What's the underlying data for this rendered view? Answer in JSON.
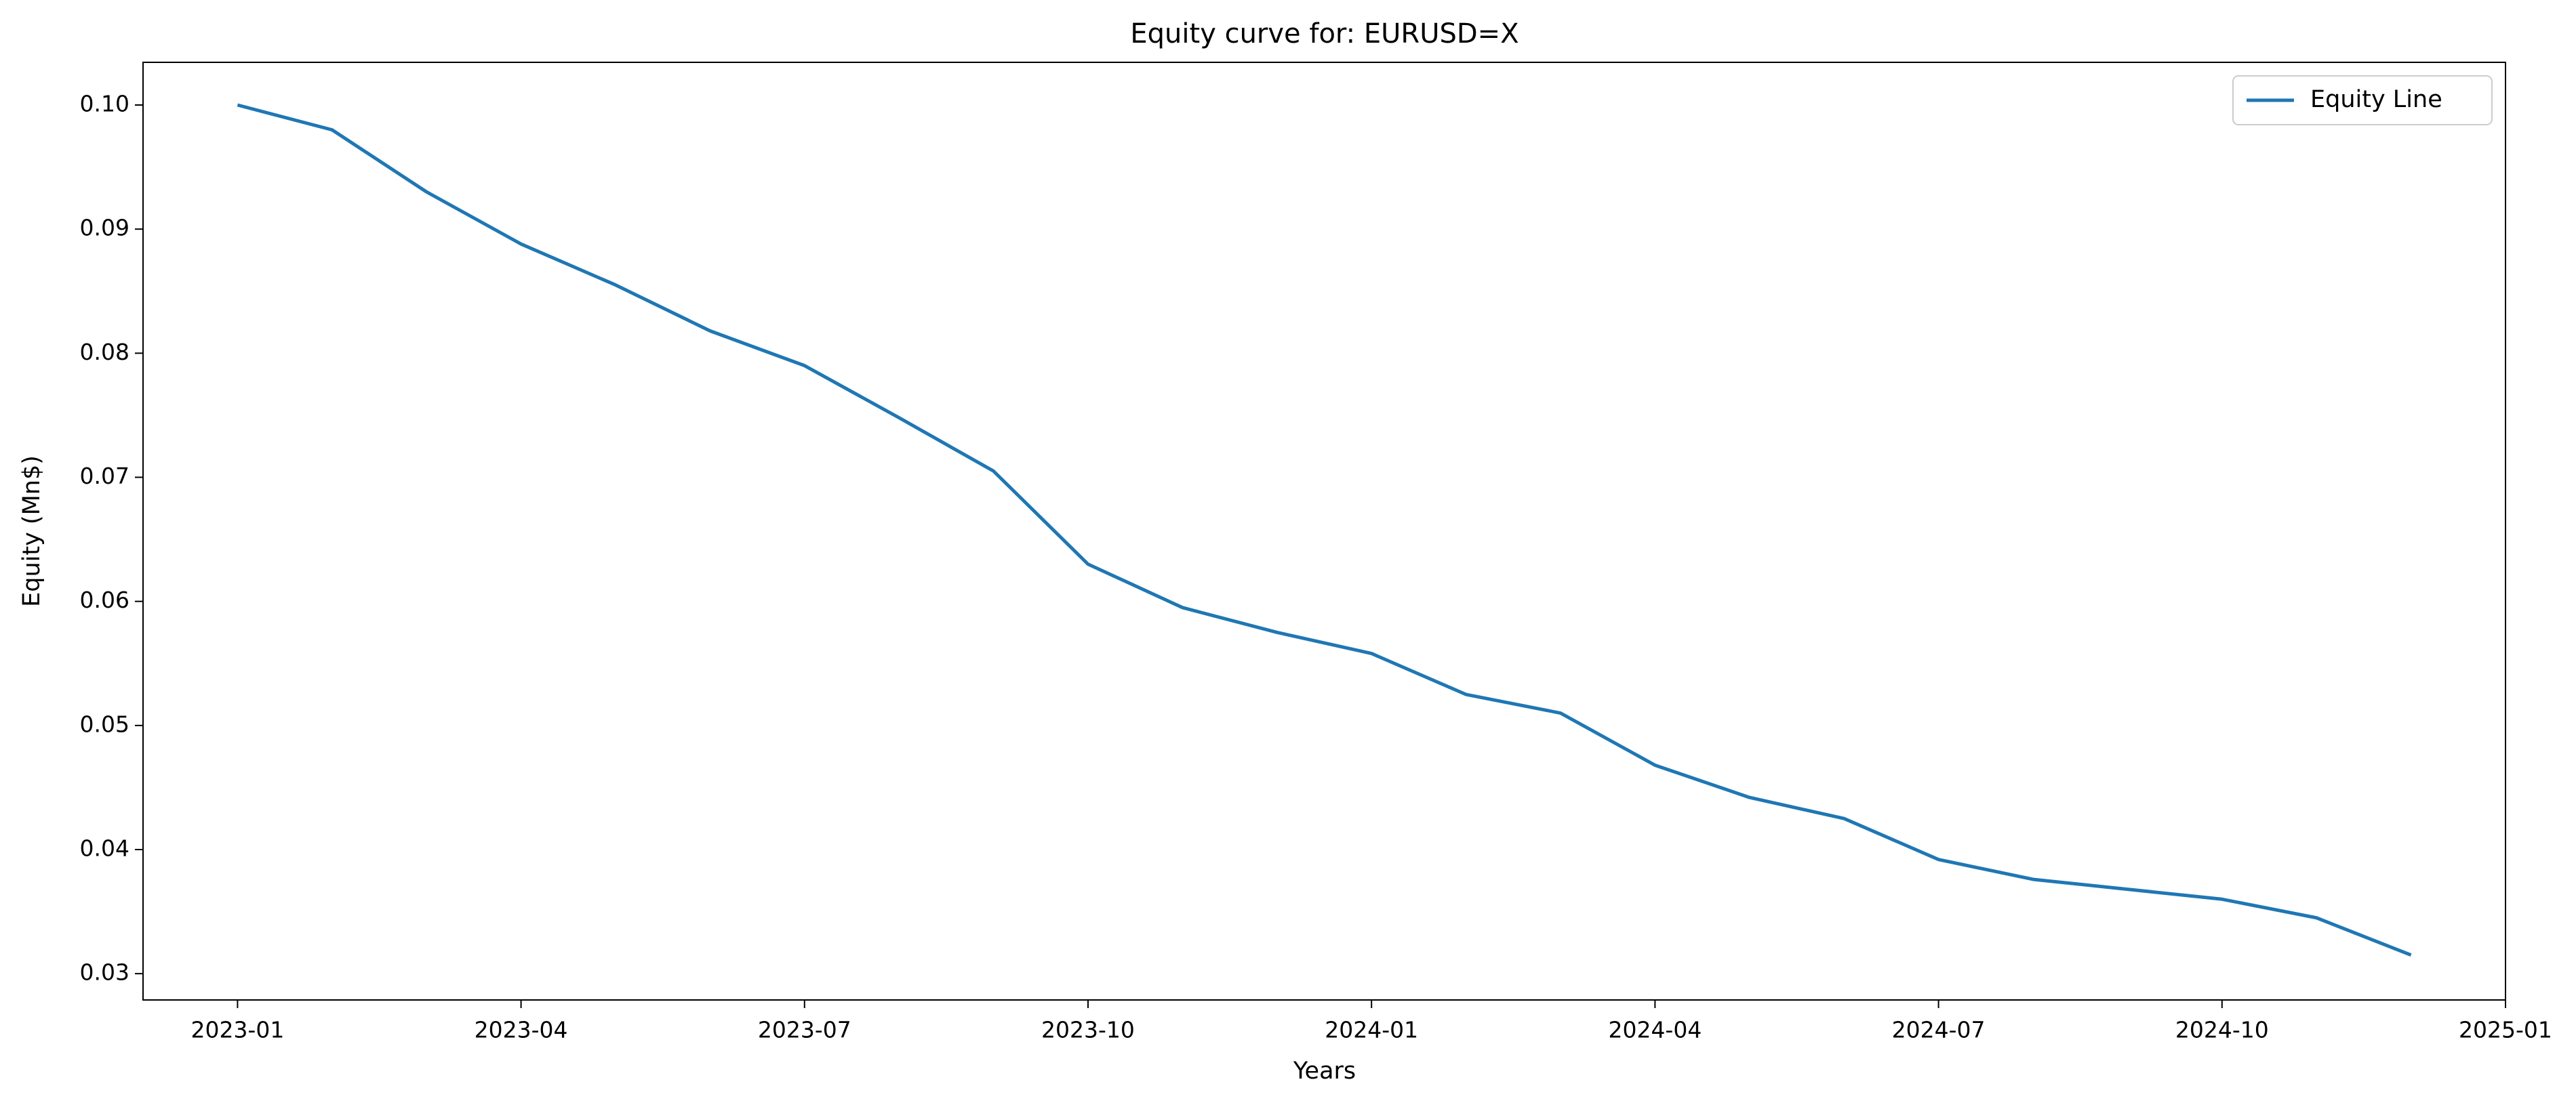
{
  "chart_data": {
    "type": "line",
    "title": "Equity curve for: EURUSD=X",
    "x_label": "Years",
    "y_label": "Equity (Mn$)",
    "x": [
      "2023-01",
      "2023-02",
      "2023-03",
      "2023-04",
      "2023-05",
      "2023-06",
      "2023-07",
      "2023-08",
      "2023-09",
      "2023-10",
      "2023-11",
      "2023-12",
      "2024-01",
      "2024-02",
      "2024-03",
      "2024-04",
      "2024-05",
      "2024-06",
      "2024-07",
      "2024-08",
      "2024-09",
      "2024-10",
      "2024-11",
      "2024-12"
    ],
    "series": [
      {
        "name": "Equity Line",
        "color": "#1f77b4",
        "values": [
          0.1,
          0.098,
          0.093,
          0.0888,
          0.0855,
          0.0818,
          0.079,
          0.0748,
          0.0705,
          0.063,
          0.0595,
          0.0575,
          0.0558,
          0.0525,
          0.051,
          0.0468,
          0.0442,
          0.0425,
          0.0392,
          0.0376,
          0.0368,
          0.036,
          0.0345,
          0.0315
        ]
      }
    ],
    "xlim": [
      "2022-12",
      "2025-01"
    ],
    "xticks": [
      "2023-01",
      "2023-04",
      "2023-07",
      "2023-10",
      "2024-01",
      "2024-04",
      "2024-07",
      "2024-10",
      "2025-01"
    ],
    "ylim": [
      0.02788,
      0.10344
    ],
    "yticks": [
      0.03,
      0.04,
      0.05,
      0.06,
      0.07,
      0.08,
      0.09,
      {
        "value": 0.1,
        "label": "0.10"
      }
    ],
    "grid": false,
    "legend": "upper right"
  }
}
